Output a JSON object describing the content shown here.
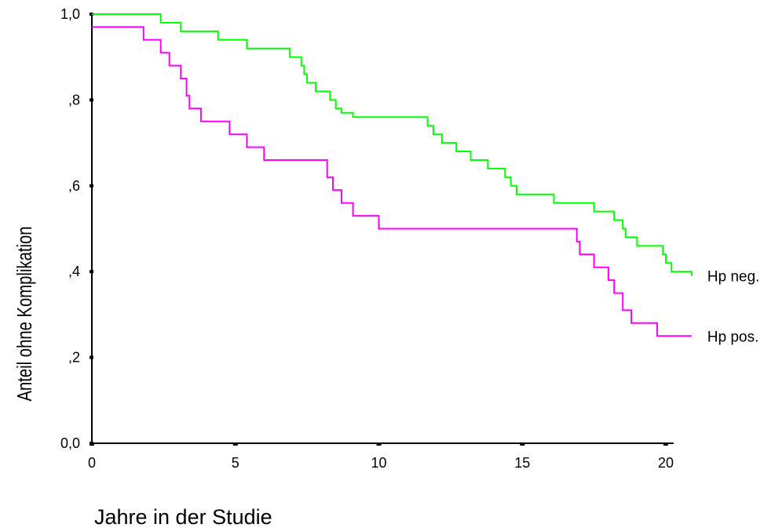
{
  "chart_data": {
    "type": "line",
    "step": true,
    "title": "",
    "xlabel": "Jahre in der Studie",
    "ylabel": "Anteil ohne Komplikation",
    "xlim": [
      0,
      20
    ],
    "ylim": [
      0,
      1
    ],
    "x_ticks": [
      0,
      5,
      10,
      15,
      20
    ],
    "x_tick_labels": [
      "0",
      "5",
      "10",
      "15",
      "20"
    ],
    "y_ticks": [
      0,
      0.2,
      0.4,
      0.6,
      0.8,
      1.0
    ],
    "y_tick_labels": [
      "0,0",
      ",2",
      ",4",
      ",6",
      ",8",
      "1,0"
    ],
    "grid": false,
    "legend": "series labels at right end of lines",
    "series": [
      {
        "name": "Hp neg.",
        "color": "#00ff00",
        "x": [
          0,
          2.4,
          3.1,
          4.4,
          5.4,
          6.9,
          7.3,
          7.4,
          7.5,
          7.8,
          8.3,
          8.5,
          8.7,
          9.1,
          11.7,
          11.9,
          12.2,
          12.7,
          13.2,
          13.8,
          14.4,
          14.6,
          14.8,
          15.2,
          16.1,
          17.5,
          18.2,
          18.5,
          18.6,
          19.0,
          19.3,
          19.9,
          20.0,
          20.2,
          20.7,
          20.9
        ],
        "y": [
          1.0,
          0.98,
          0.96,
          0.94,
          0.92,
          0.9,
          0.88,
          0.86,
          0.84,
          0.82,
          0.8,
          0.78,
          0.77,
          0.76,
          0.74,
          0.72,
          0.7,
          0.68,
          0.66,
          0.64,
          0.62,
          0.6,
          0.58,
          0.58,
          0.56,
          0.54,
          0.52,
          0.5,
          0.48,
          0.46,
          0.46,
          0.44,
          0.42,
          0.4,
          0.4,
          0.39
        ]
      },
      {
        "name": "Hp pos.",
        "color": "#ff00ff",
        "x": [
          0,
          1.8,
          2.4,
          2.7,
          3.1,
          3.3,
          3.4,
          3.8,
          4.8,
          5.4,
          6.0,
          8.2,
          8.4,
          8.7,
          9.1,
          10.0,
          16.9,
          17.0,
          17.1,
          17.5,
          18.0,
          18.2,
          18.5,
          18.8,
          19.7,
          20.9
        ],
        "y": [
          0.97,
          0.94,
          0.91,
          0.88,
          0.85,
          0.81,
          0.78,
          0.75,
          0.72,
          0.69,
          0.66,
          0.62,
          0.59,
          0.56,
          0.53,
          0.5,
          0.47,
          0.44,
          0.44,
          0.41,
          0.38,
          0.35,
          0.31,
          0.28,
          0.25,
          0.25
        ]
      }
    ]
  }
}
